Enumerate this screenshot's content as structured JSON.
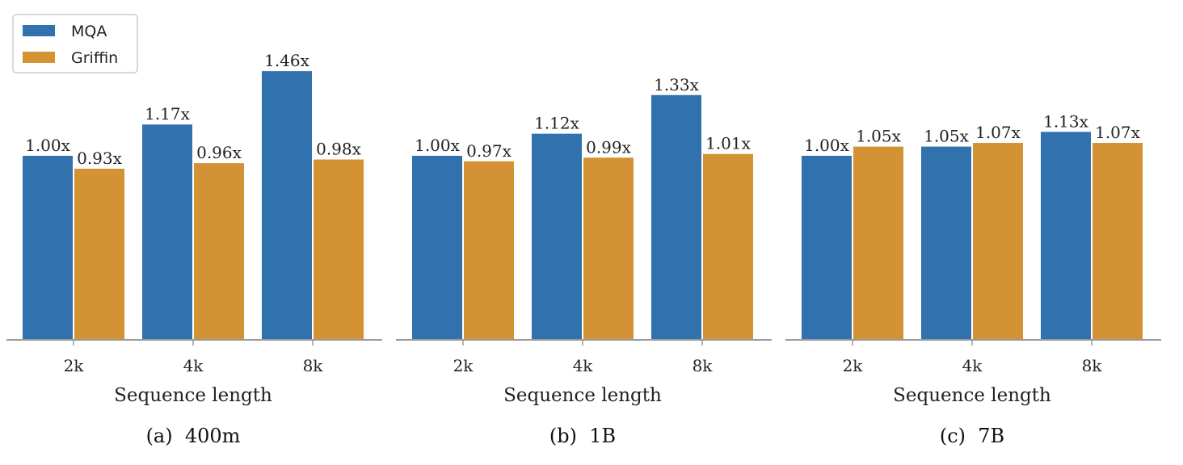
{
  "colors": {
    "MQA": "#3171ad",
    "Griffin": "#d39234",
    "axis": "#9a9a9a",
    "legend_border": "#cccccc"
  },
  "legend": {
    "items": [
      "MQA",
      "Griffin"
    ],
    "placement": "top-left"
  },
  "chart_data": [
    {
      "type": "bar",
      "caption": "(a)  400m",
      "xlabel": "Sequence length",
      "ylabel": "",
      "categories": [
        "2k",
        "4k",
        "8k"
      ],
      "series": [
        {
          "name": "MQA",
          "values": [
            1.0,
            1.17,
            1.46
          ],
          "labels": [
            "1.00x",
            "1.17x",
            "1.46x"
          ]
        },
        {
          "name": "Griffin",
          "values": [
            0.93,
            0.96,
            0.98
          ],
          "labels": [
            "0.93x",
            "0.96x",
            "0.98x"
          ]
        }
      ],
      "ylim": [
        0,
        1.6
      ],
      "grid": false
    },
    {
      "type": "bar",
      "caption": "(b)  1B",
      "xlabel": "Sequence length",
      "ylabel": "",
      "categories": [
        "2k",
        "4k",
        "8k"
      ],
      "series": [
        {
          "name": "MQA",
          "values": [
            1.0,
            1.12,
            1.33
          ],
          "labels": [
            "1.00x",
            "1.12x",
            "1.33x"
          ]
        },
        {
          "name": "Griffin",
          "values": [
            0.97,
            0.99,
            1.01
          ],
          "labels": [
            "0.97x",
            "0.99x",
            "1.01x"
          ]
        }
      ],
      "ylim": [
        0,
        1.6
      ],
      "grid": false
    },
    {
      "type": "bar",
      "caption": "(c)  7B",
      "xlabel": "Sequence length",
      "ylabel": "",
      "categories": [
        "2k",
        "4k",
        "8k"
      ],
      "series": [
        {
          "name": "MQA",
          "values": [
            1.0,
            1.05,
            1.13
          ],
          "labels": [
            "1.00x",
            "1.05x",
            "1.13x"
          ]
        },
        {
          "name": "Griffin",
          "values": [
            1.05,
            1.07,
            1.07
          ],
          "labels": [
            "1.05x",
            "1.07x",
            "1.07x"
          ]
        }
      ],
      "ylim": [
        0,
        1.6
      ],
      "grid": false
    }
  ]
}
